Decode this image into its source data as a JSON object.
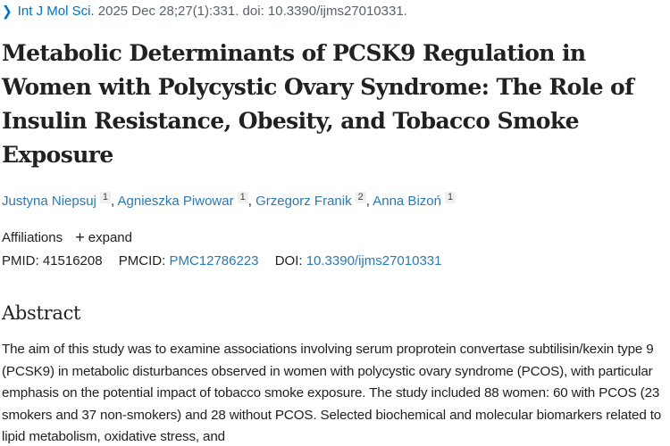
{
  "citation": {
    "chevron_icon": "chevron-right-icon",
    "journal": "Int J Mol Sci.",
    "details": " 2025 Dec 28;27(1):331. doi: 10.3390/ijms27010331."
  },
  "article": {
    "title": "Metabolic Determinants of PCSK9 Regulation in Women with Polycystic Ovary Syndrome: The Role of Insulin Resistance, Obesity, and Tobacco Smoke Exposure"
  },
  "authors": [
    {
      "name": "Justyna Niepsuj",
      "affiliation": "1"
    },
    {
      "name": "Agnieszka Piwowar",
      "affiliation": "1"
    },
    {
      "name": "Grzegorz Franik",
      "affiliation": "2"
    },
    {
      "name": "Anna Bizoń",
      "affiliation": "1"
    }
  ],
  "affiliations": {
    "label": "Affiliations",
    "expand_icon": "plus-icon",
    "expand_label": "expand"
  },
  "identifiers": {
    "pmid_label": "PMID:",
    "pmid": "41516208",
    "pmcid_label": "PMCID:",
    "pmcid": "PMC12786223",
    "doi_label": "DOI:",
    "doi": "10.3390/ijms27010331"
  },
  "abstract": {
    "heading": "Abstract",
    "text": "The aim of this study was to examine associations involving serum proprotein convertase subtilisin/kexin type 9 (PCSK9) in metabolic disturbances observed in women with polycystic ovary syndrome (PCOS), with particular emphasis on the potential impact of tobacco smoke exposure. The study included 88 women: 60 with PCOS (23 smokers and 37 non-smokers) and 28 without PCOS. Selected biochemical and molecular biomarkers related to lipid metabolism, oxidative stress, and"
  },
  "colors": {
    "link": "#2a7ab0",
    "text": "#212121",
    "muted": "#5b616b"
  }
}
